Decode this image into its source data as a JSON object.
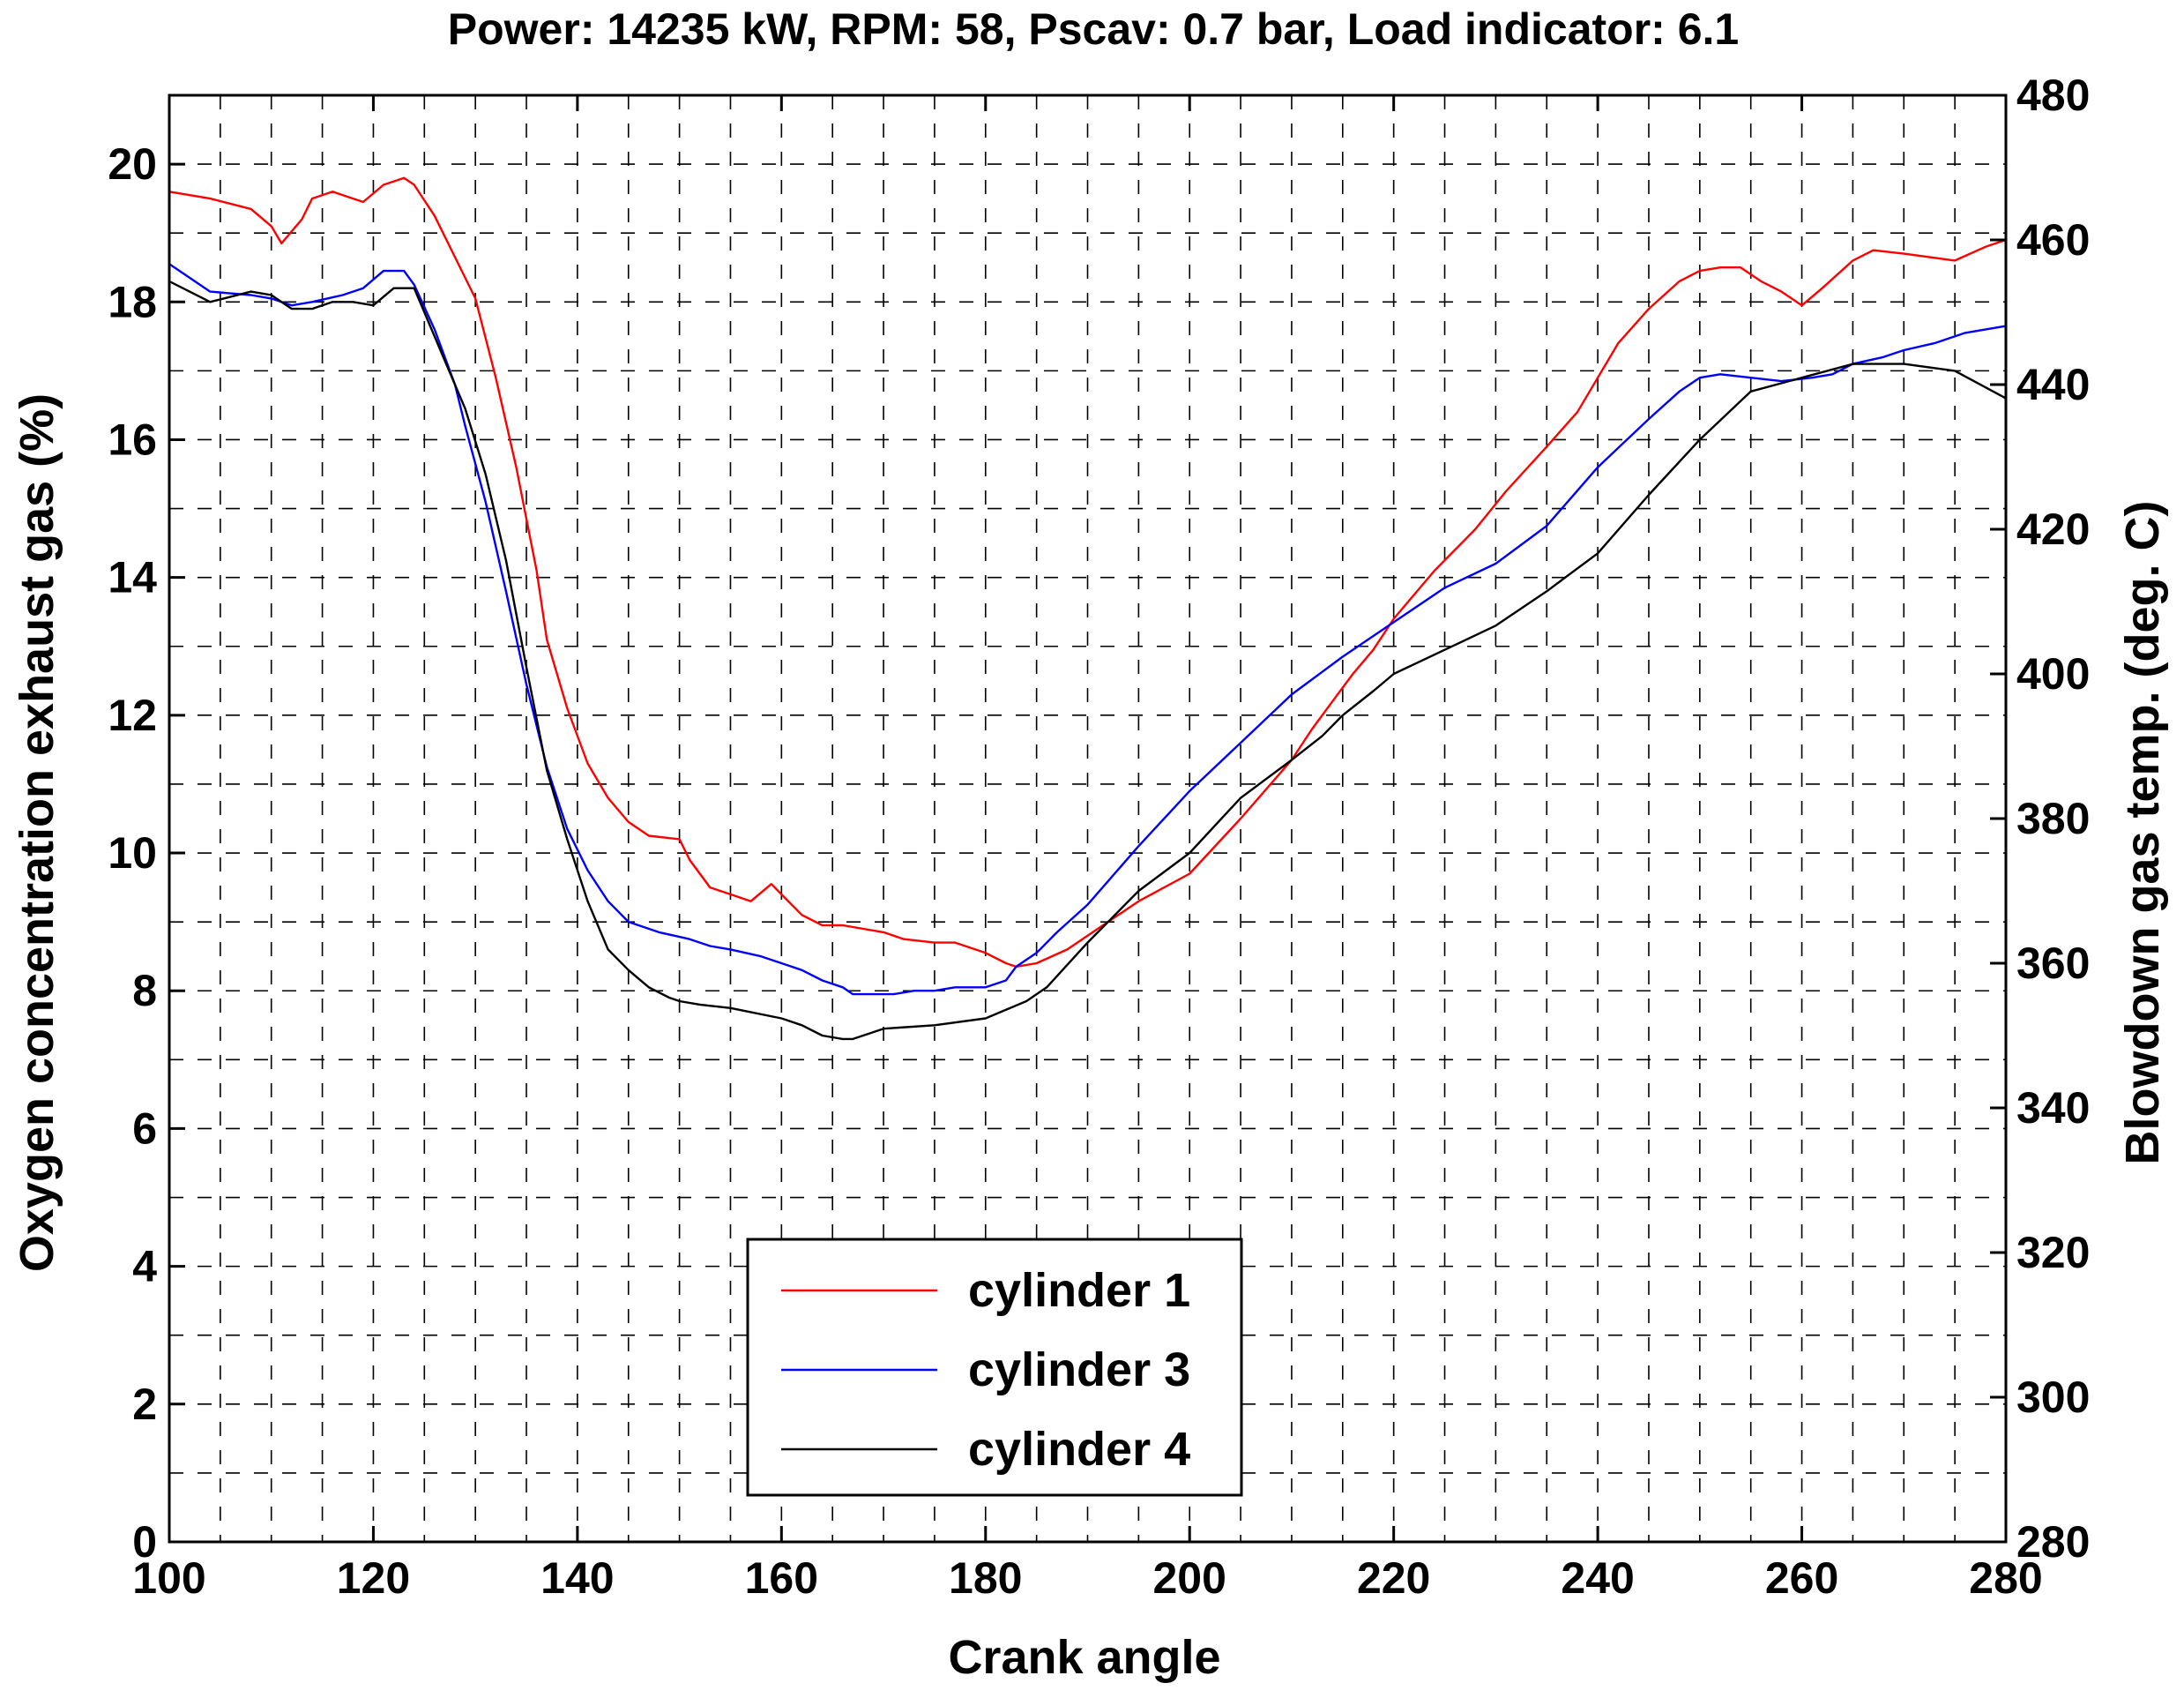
{
  "chart_data": {
    "type": "line",
    "title": "Power: 14235 kW, RPM: 58, Pscav: 0.7 bar, Load indicator: 6.1",
    "xlabel": "Crank angle",
    "ylabel": "Oxygen concentration exhaust gas (%)",
    "y2label": "Blowdown gas temp. (deg. C)",
    "xlim": [
      100,
      280
    ],
    "ylim": [
      0,
      21
    ],
    "y2lim": [
      280,
      480
    ],
    "xticks": [
      "100",
      "120",
      "140",
      "160",
      "180",
      "200",
      "220",
      "240",
      "260",
      "280"
    ],
    "yticks": [
      "0",
      "2",
      "4",
      "6",
      "8",
      "10",
      "12",
      "14",
      "16",
      "18",
      "20"
    ],
    "y2ticks": [
      "280",
      "300",
      "320",
      "340",
      "360",
      "380",
      "400",
      "420",
      "440",
      "460",
      "480"
    ],
    "grid": true,
    "grid_style": "dashed",
    "legend_position": "bottom-center",
    "legend": [
      "cylinder 1",
      "cylinder 3",
      "cylinder 4"
    ],
    "colors": {
      "cylinder 1": "#ff0000",
      "cylinder 3": "#0000ff",
      "cylinder 4": "#000000"
    },
    "series": [
      {
        "name": "cylinder 1",
        "color": "#ff0000",
        "x": [
          100,
          104,
          108,
          110,
          111,
          113,
          114,
          116,
          119,
          121,
          123,
          124,
          126,
          128,
          130,
          132,
          134,
          136,
          137,
          139,
          141,
          143,
          145,
          147,
          150,
          151,
          153,
          155,
          157,
          159,
          160,
          162,
          164,
          166,
          170,
          172,
          175,
          177,
          180,
          182,
          183,
          185,
          188,
          190,
          195,
          200,
          205,
          210,
          212,
          214,
          216,
          218,
          220,
          224,
          228,
          231,
          235,
          238,
          242,
          245,
          248,
          250,
          252,
          254,
          256,
          258,
          260,
          262,
          265,
          267,
          270,
          275,
          278,
          280
        ],
        "y": [
          19.6,
          19.5,
          19.35,
          19.1,
          18.85,
          19.2,
          19.5,
          19.6,
          19.45,
          19.7,
          19.8,
          19.7,
          19.25,
          18.65,
          18.05,
          16.9,
          15.6,
          14.1,
          13.1,
          12.1,
          11.3,
          10.8,
          10.45,
          10.25,
          10.2,
          9.9,
          9.5,
          9.4,
          9.3,
          9.55,
          9.4,
          9.1,
          8.95,
          8.95,
          8.85,
          8.75,
          8.7,
          8.7,
          8.55,
          8.4,
          8.35,
          8.4,
          8.6,
          8.8,
          9.3,
          9.7,
          10.5,
          11.35,
          11.8,
          12.2,
          12.6,
          12.95,
          13.4,
          14.1,
          14.7,
          15.25,
          15.9,
          16.4,
          17.4,
          17.9,
          18.3,
          18.45,
          18.5,
          18.5,
          18.3,
          18.15,
          17.95,
          18.2,
          18.6,
          18.75,
          18.7,
          18.6,
          18.8,
          18.9
        ]
      },
      {
        "name": "cylinder 3",
        "color": "#0000ff",
        "x": [
          100,
          104,
          108,
          110,
          112,
          114,
          117,
          119,
          121,
          123,
          124,
          126,
          128,
          129,
          131,
          133,
          135,
          137,
          139,
          141,
          143,
          145,
          148,
          151,
          153,
          155,
          158,
          160,
          162,
          164,
          166,
          167,
          169,
          171,
          173,
          175,
          177,
          180,
          182,
          183,
          185,
          187,
          190,
          195,
          200,
          205,
          210,
          215,
          220,
          225,
          230,
          235,
          240,
          245,
          248,
          250,
          252,
          255,
          258,
          261,
          263,
          265,
          268,
          270,
          273,
          276,
          280
        ],
        "y": [
          18.55,
          18.15,
          18.1,
          18.05,
          17.95,
          18.0,
          18.1,
          18.2,
          18.45,
          18.45,
          18.25,
          17.6,
          16.8,
          16.2,
          15.1,
          13.8,
          12.45,
          11.25,
          10.35,
          9.75,
          9.3,
          9.0,
          8.85,
          8.75,
          8.65,
          8.6,
          8.5,
          8.4,
          8.3,
          8.15,
          8.05,
          7.95,
          7.95,
          7.95,
          8.0,
          8.0,
          8.05,
          8.05,
          8.15,
          8.35,
          8.55,
          8.85,
          9.25,
          10.1,
          10.9,
          11.6,
          12.3,
          12.85,
          13.35,
          13.85,
          14.2,
          14.75,
          15.6,
          16.3,
          16.7,
          16.9,
          16.95,
          16.9,
          16.85,
          16.9,
          16.95,
          17.1,
          17.2,
          17.3,
          17.4,
          17.55,
          17.65
        ]
      },
      {
        "name": "cylinder 4",
        "color": "#000000",
        "x": [
          100,
          104,
          108,
          110,
          112,
          114,
          116,
          118,
          120,
          122,
          124,
          125,
          127,
          129,
          131,
          133,
          135,
          137,
          139,
          141,
          143,
          145,
          147,
          149,
          150,
          152,
          155,
          160,
          162,
          164,
          166,
          167,
          170,
          175,
          180,
          184,
          186,
          190,
          195,
          200,
          205,
          210,
          213,
          215,
          218,
          220,
          225,
          230,
          235,
          240,
          245,
          250,
          255,
          260,
          265,
          270,
          275,
          280
        ],
        "y": [
          18.3,
          18.0,
          18.15,
          18.1,
          17.9,
          17.9,
          18.0,
          18.0,
          17.95,
          18.2,
          18.2,
          17.85,
          17.15,
          16.45,
          15.5,
          14.25,
          12.7,
          11.2,
          10.2,
          9.3,
          8.6,
          8.3,
          8.05,
          7.9,
          7.85,
          7.8,
          7.75,
          7.6,
          7.5,
          7.35,
          7.3,
          7.3,
          7.45,
          7.5,
          7.6,
          7.85,
          8.05,
          8.7,
          9.45,
          10.0,
          10.8,
          11.35,
          11.7,
          12.0,
          12.35,
          12.6,
          12.95,
          13.3,
          13.8,
          14.35,
          15.2,
          16.0,
          16.7,
          16.9,
          17.1,
          17.1,
          17.0,
          16.6
        ]
      }
    ]
  }
}
